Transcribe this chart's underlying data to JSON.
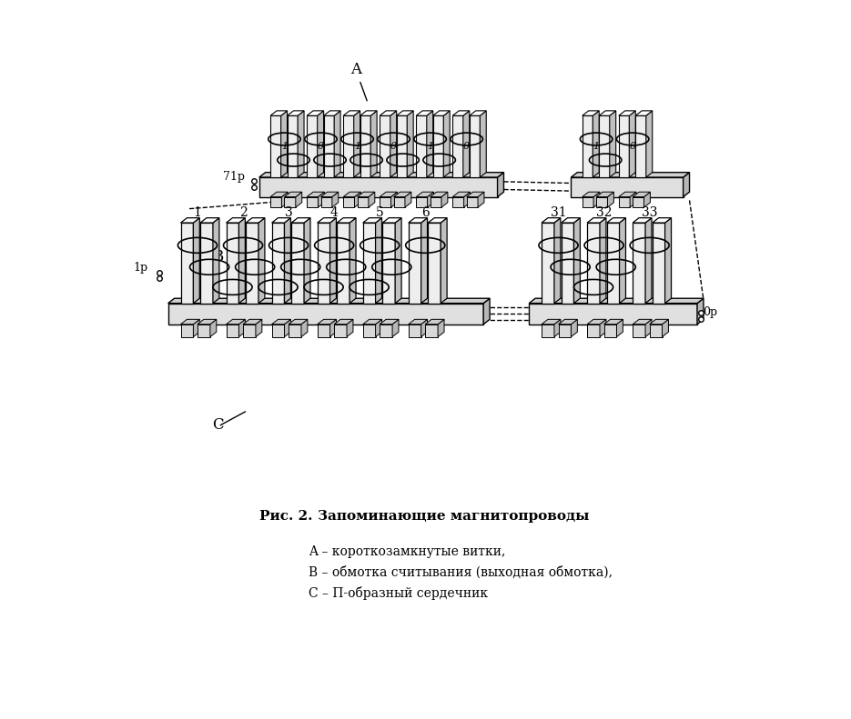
{
  "caption_label": "Рис. 2.",
  "caption_title": "Запоминающие магнитопроводы",
  "legend_A": "A – короткозамкнутые витки,",
  "legend_B": "B – обмотка считывания (выходная обмотка),",
  "legend_C": "C – П-образный сердечник",
  "bg_color": "#ffffff",
  "lc": "#000000"
}
